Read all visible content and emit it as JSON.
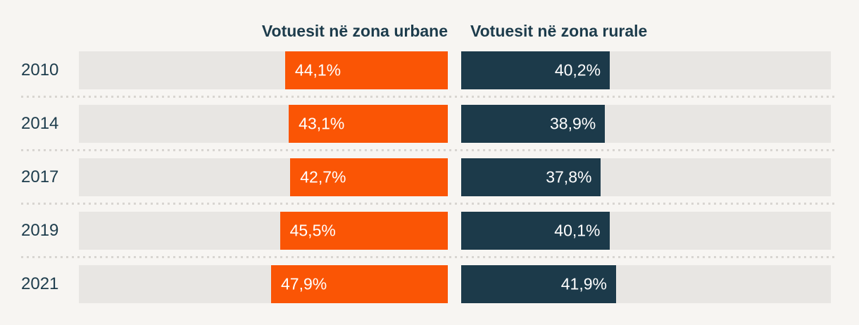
{
  "chart_data": {
    "type": "bar",
    "orientation": "horizontal",
    "variant": "diverging-two-column",
    "categories": [
      "2010",
      "2014",
      "2017",
      "2019",
      "2021"
    ],
    "series": [
      {
        "name": "Votuesit në zona urbane",
        "color": "#fa5505",
        "anchor": "right",
        "values": [
          44.1,
          43.1,
          42.7,
          45.5,
          47.9
        ],
        "labels": [
          "44,1%",
          "43,1%",
          "42,7%",
          "45,5%",
          "47,9%"
        ]
      },
      {
        "name": "Votuesit në zona rurale",
        "color": "#1c3a4a",
        "anchor": "left",
        "values": [
          40.2,
          38.9,
          37.8,
          40.1,
          41.9
        ],
        "labels": [
          "40,2%",
          "38,9%",
          "37,8%",
          "40,1%",
          "41,9%"
        ]
      }
    ],
    "axis_max": 100,
    "grid": false,
    "legend_position": "column-headers",
    "value_labels_inside_bars": true
  },
  "colors": {
    "background": "#f7f5f2",
    "track": "#e8e6e3",
    "urban_bar": "#fa5505",
    "rural_bar": "#1c3a4a",
    "text": "#1d3c4c",
    "value_text": "#ffffff",
    "separator_dots": "#d8d5d1"
  }
}
